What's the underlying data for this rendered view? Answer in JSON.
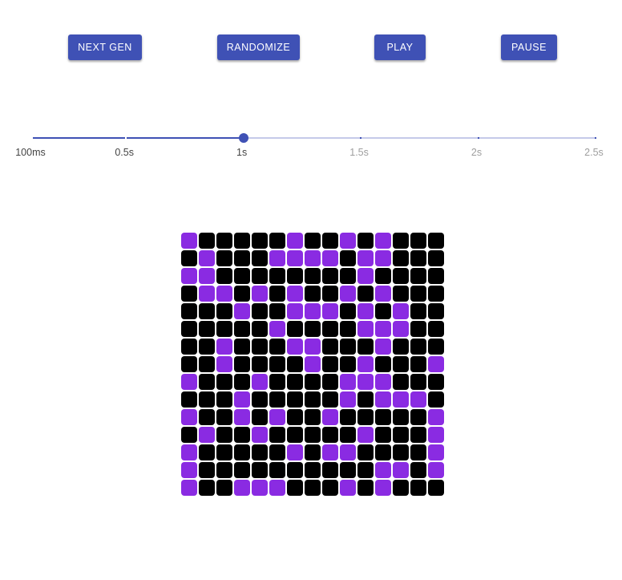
{
  "toolbar": {
    "next_gen_label": "Next Gen",
    "randomize_label": "Randomize",
    "play_label": "Play",
    "pause_label": "Pause"
  },
  "speed_slider": {
    "marks": [
      {
        "label": "100ms",
        "ms": 100
      },
      {
        "label": "0.5s",
        "ms": 500
      },
      {
        "label": "1s",
        "ms": 1000
      },
      {
        "label": "1.5s",
        "ms": 1500
      },
      {
        "label": "2s",
        "ms": 2000
      },
      {
        "label": "2.5s",
        "ms": 2500
      }
    ],
    "min_ms": 100,
    "max_ms": 2500,
    "value_ms": 1000
  },
  "colors": {
    "primary": "#3f51b5",
    "alive_cell": "#8a2be2",
    "dead_cell": "#000000"
  },
  "board": {
    "rows": 15,
    "cols": 15,
    "cells": [
      "100000100101000",
      "010001111011000",
      "110000000010000",
      "011010100101000",
      "000100111010100",
      "000001000011100",
      "001000110001000",
      "001000010010001",
      "100010000111000",
      "000100000101110",
      "100101001000001",
      "010010000010001",
      "100000101100001",
      "100000000001101",
      "100111000101000"
    ]
  }
}
